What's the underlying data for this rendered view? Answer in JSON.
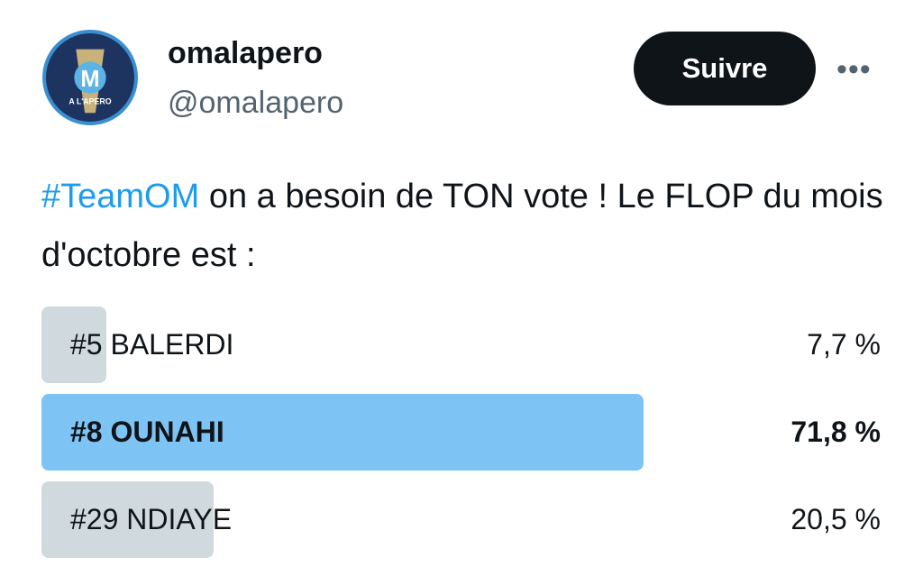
{
  "author": {
    "name": "omalapero",
    "handle": "@omalapero",
    "avatar_text": "A L'APERO"
  },
  "follow_label": "Suivre",
  "more_icon": "more-horizontal-icon",
  "tweet": {
    "hashtag": "#TeamOM",
    "text": " on a besoin de TON vote ! Le FLOP du mois d'octobre est :"
  },
  "poll": {
    "options": [
      {
        "label": "#5 BALERDI",
        "percent_text": "7,7 %",
        "percent": 7.7,
        "winner": false
      },
      {
        "label": "#8 OUNAHI",
        "percent_text": "71,8 %",
        "percent": 71.8,
        "winner": true
      },
      {
        "label": "#29 NDIAYE",
        "percent_text": "20,5 %",
        "percent": 20.5,
        "winner": false
      }
    ],
    "colors": {
      "winner": "#7dc4f5",
      "other": "#cfd9de"
    }
  }
}
